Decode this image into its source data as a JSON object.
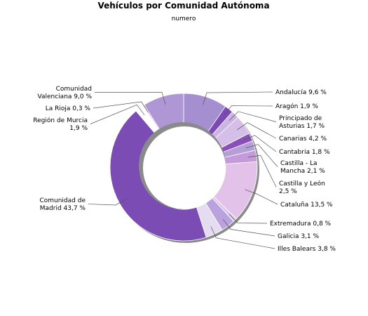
{
  "chart_data": {
    "type": "pie",
    "title": "Vehículos por Comunidad Autónoma",
    "subtitle": "numero",
    "slices": [
      {
        "label": [
          "Andalucía 9,6 %"
        ],
        "value": 9.6,
        "color": "#a58fd0"
      },
      {
        "label": [
          "Aragón 1,9 %"
        ],
        "value": 1.9,
        "color": "#7c4ab5"
      },
      {
        "label": [
          "Principado de",
          "Asturias 1,7 %"
        ],
        "value": 1.7,
        "color": "#cbb4e3"
      },
      {
        "label": [
          "Canarias 4,2 %"
        ],
        "value": 4.2,
        "color": "#d5bfe8"
      },
      {
        "label": [
          "Cantabria 1,8 %"
        ],
        "value": 1.8,
        "color": "#8a50b8"
      },
      {
        "label": [
          "Castilla - La",
          "Mancha 2,1 %"
        ],
        "value": 2.1,
        "color": "#b49fd8"
      },
      {
        "label": [
          "Castilla y León",
          "2,5 %"
        ],
        "value": 2.5,
        "color": "#c49ad9"
      },
      {
        "label": [
          "Cataluña 13,5 %"
        ],
        "value": 13.5,
        "color": "#e2c2e8"
      },
      {
        "label": [
          "Extremadura 0,8 %"
        ],
        "value": 0.8,
        "color": "#d9c8ee"
      },
      {
        "label": [
          "Galicia 3,1 %"
        ],
        "value": 3.1,
        "color": "#b9a2dd"
      },
      {
        "label": [
          "Illes Balears 3,8 %"
        ],
        "value": 3.8,
        "color": "#e6dcf2"
      },
      {
        "label": [
          "Comunidad de",
          "Madrid 43,7 %"
        ],
        "value": 43.7,
        "color": "#7b4cb3"
      },
      {
        "label": [
          "Región de Murcia",
          "1,9 %"
        ],
        "value": 1.9,
        "color": "#ffffff"
      },
      {
        "label": [
          "La Rioja 0,3 %"
        ],
        "value": 0.3,
        "color": "#cdb7e0"
      },
      {
        "label": [
          "Comunidad",
          "Valenciana 9,0 %"
        ],
        "value": 9.0,
        "color": "#ae97d4"
      }
    ]
  }
}
